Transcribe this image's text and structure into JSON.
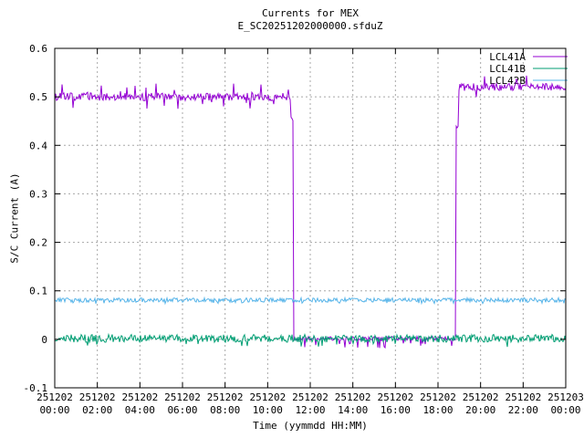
{
  "window": {
    "background": "#ffffff"
  },
  "chart_data": {
    "type": "line",
    "title": "Currents for MEX",
    "subtitle": "E_SC20251202000000.sfduZ",
    "xlabel": "Time (yymmdd HH:MM)",
    "ylabel": "S/C Current (A)",
    "ylim": [
      -0.1,
      0.6
    ],
    "xlim_hours": [
      0,
      24
    ],
    "grid": true,
    "legend_position": "top-right-inside",
    "axis_color": "#000000",
    "grid_color": "#a8a8a8",
    "y_ticks": [
      {
        "label": "0.6",
        "value": 0.6
      },
      {
        "label": "0.5",
        "value": 0.5
      },
      {
        "label": "0.4",
        "value": 0.4
      },
      {
        "label": "0.3",
        "value": 0.3
      },
      {
        "label": "0.2",
        "value": 0.2
      },
      {
        "label": "0.1",
        "value": 0.1
      },
      {
        "label": "0",
        "value": 0.0
      },
      {
        "label": "-0.1",
        "value": -0.1
      }
    ],
    "x_ticks": [
      {
        "date": "251202",
        "time": "00:00",
        "hour": 0
      },
      {
        "date": "251202",
        "time": "02:00",
        "hour": 2
      },
      {
        "date": "251202",
        "time": "04:00",
        "hour": 4
      },
      {
        "date": "251202",
        "time": "06:00",
        "hour": 6
      },
      {
        "date": "251202",
        "time": "08:00",
        "hour": 8
      },
      {
        "date": "251202",
        "time": "10:00",
        "hour": 10
      },
      {
        "date": "251202",
        "time": "12:00",
        "hour": 12
      },
      {
        "date": "251202",
        "time": "14:00",
        "hour": 14
      },
      {
        "date": "251202",
        "time": "16:00",
        "hour": 16
      },
      {
        "date": "251202",
        "time": "18:00",
        "hour": 18
      },
      {
        "date": "251202",
        "time": "20:00",
        "hour": 20
      },
      {
        "date": "251202",
        "time": "22:00",
        "hour": 22
      },
      {
        "date": "251203",
        "time": "00:00",
        "hour": 24
      }
    ],
    "series": [
      {
        "name": "LCL41A",
        "color": "#9400d3",
        "reading": "approx 0.50 A with noise until ~11:10, 0.00 A (small negative spikes) until ~18:50, then approx 0.52 A with noise",
        "segments": [
          {
            "from_h": 0.0,
            "to_h": 11.08,
            "level": 0.5,
            "jitter": 0.008,
            "spike_amp": 0.028,
            "spike_prob": 0.1
          },
          {
            "from_h": 11.08,
            "to_h": 11.2,
            "level": 0.455,
            "jitter": 0.004
          },
          {
            "from_h": 11.2,
            "to_h": 18.85,
            "level": 0.002,
            "jitter": 0.004,
            "dip_amp": 0.02,
            "dip_prob": 0.06,
            "spike_amp": 0.022,
            "spike_prob": 0.004
          },
          {
            "from_h": 18.85,
            "to_h": 18.95,
            "level": 0.44,
            "jitter": 0.004
          },
          {
            "from_h": 18.95,
            "to_h": 24.0,
            "level": 0.52,
            "jitter": 0.008,
            "spike_amp": 0.025,
            "spike_prob": 0.1
          }
        ]
      },
      {
        "name": "LCL41B",
        "color": "#009e73",
        "reading": "constant approx 0.00 A band with occasional dips to about -0.02 A",
        "segments": [
          {
            "from_h": 0.0,
            "to_h": 24.0,
            "level": 0.002,
            "jitter": 0.008,
            "dip_amp": 0.018,
            "dip_prob": 0.04
          }
        ]
      },
      {
        "name": "LCL42B",
        "color": "#56b4e9",
        "reading": "constant approx 0.08 A band",
        "segments": [
          {
            "from_h": 0.0,
            "to_h": 24.0,
            "level": 0.081,
            "jitter": 0.0045,
            "dip_amp": 0.008,
            "dip_prob": 0.05
          }
        ]
      }
    ]
  }
}
